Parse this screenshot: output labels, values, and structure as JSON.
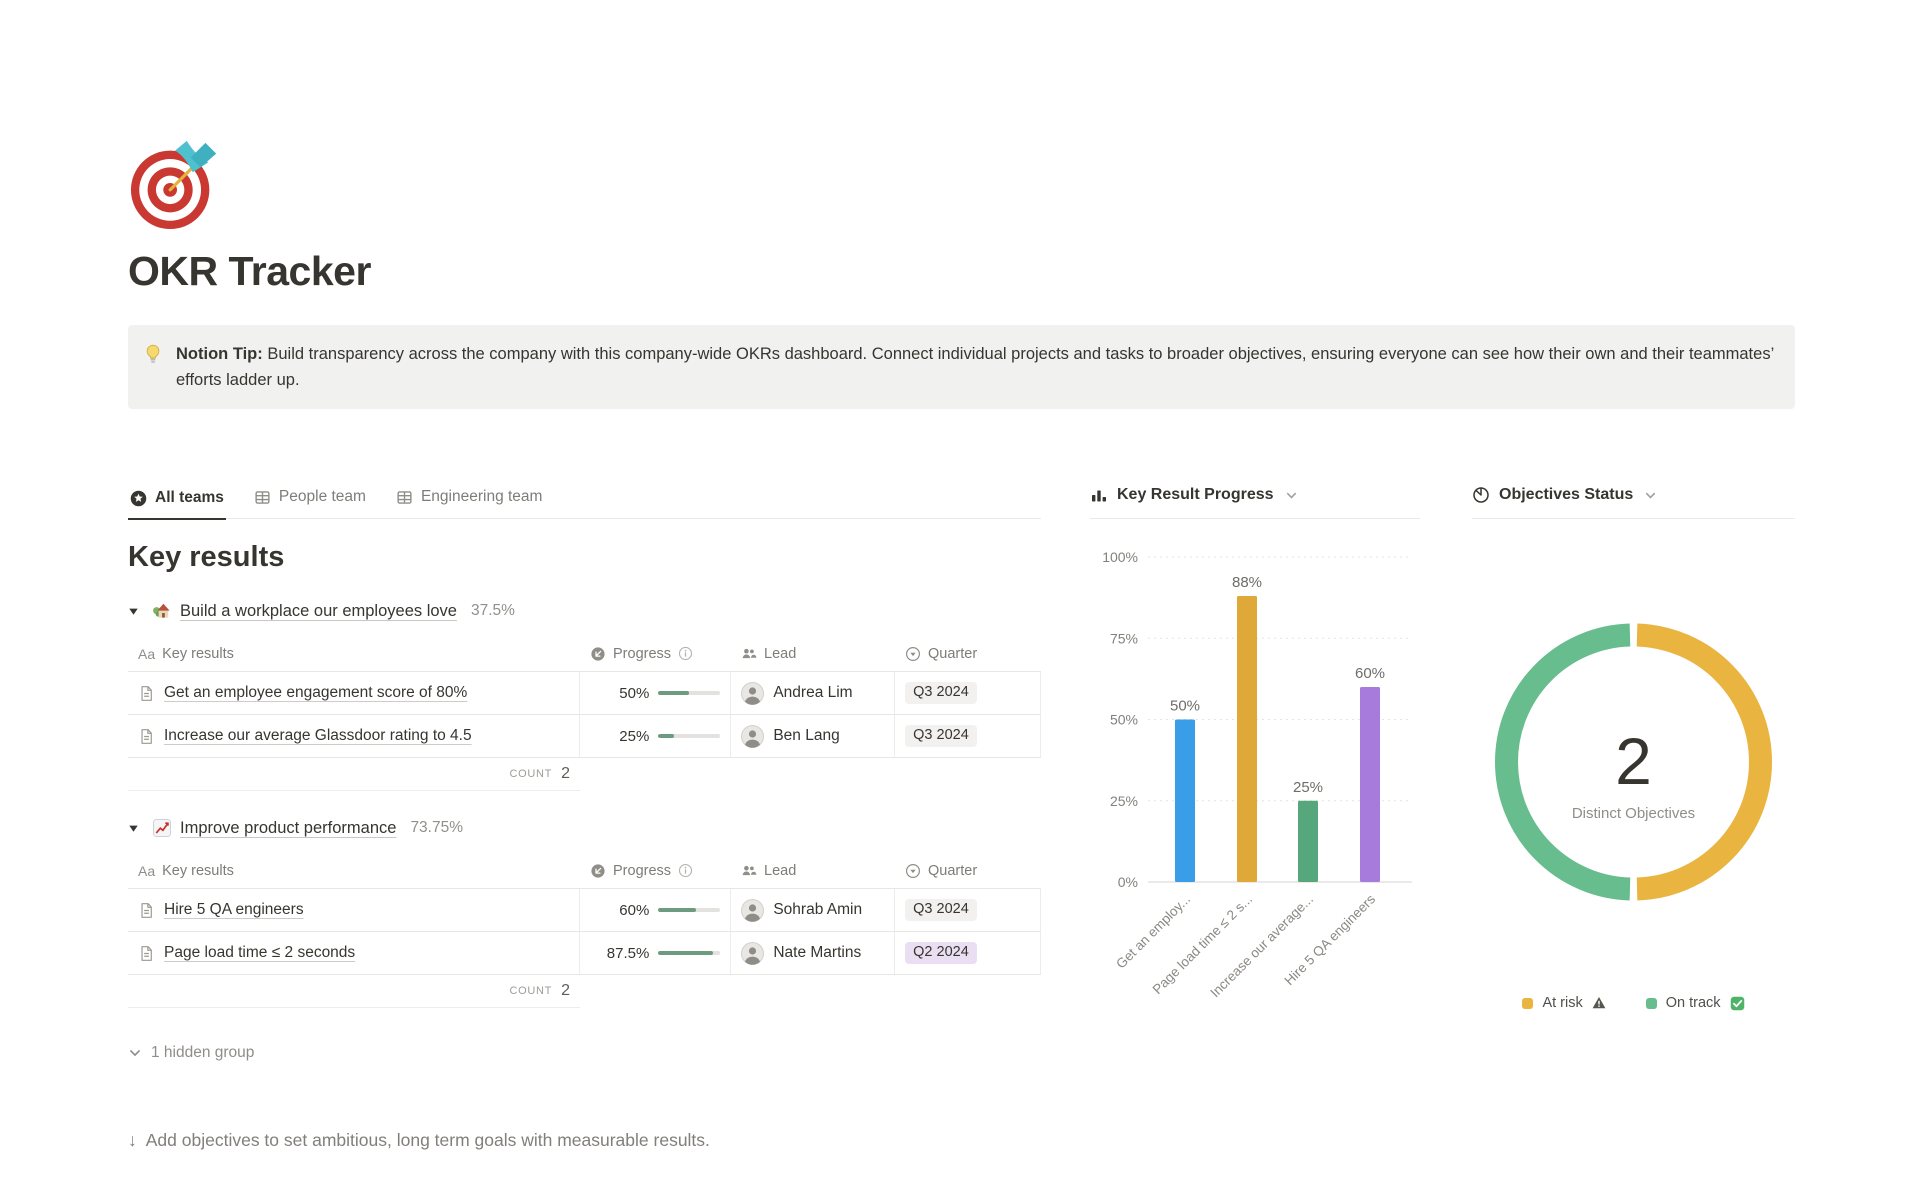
{
  "page": {
    "icon": "target-dart-emoji",
    "title": "OKR Tracker"
  },
  "callout": {
    "icon": "lightbulb-emoji",
    "lead_in": "Notion Tip:",
    "text": "Build transparency across the company with this company-wide OKRs dashboard. Connect individual projects and tasks to broader objectives, ensuring everyone can see how their own and their teammates’ efforts ladder up."
  },
  "tabs": [
    {
      "label": "All teams",
      "icon": "star-circle-icon",
      "active": true
    },
    {
      "label": "People team",
      "icon": "table-icon",
      "active": false
    },
    {
      "label": "Engineering team",
      "icon": "table-icon",
      "active": false
    }
  ],
  "section": {
    "title": "Key results"
  },
  "table_columns": {
    "name": "Key results",
    "name_icon": "Aa",
    "progress": "Progress",
    "lead": "Lead",
    "quarter": "Quarter"
  },
  "groups": [
    {
      "icon": "house-emoji",
      "title": "Build a workplace our employees love",
      "percent": "37.5%",
      "rows": [
        {
          "name": "Get an employee engagement score of 80%",
          "progress": 50,
          "progress_label": "50%",
          "lead": "Andrea Lim",
          "quarter": "Q3 2024",
          "quarter_style": "gray"
        },
        {
          "name": "Increase our average Glassdoor rating to 4.5",
          "progress": 25,
          "progress_label": "25%",
          "lead": "Ben Lang",
          "quarter": "Q3 2024",
          "quarter_style": "gray"
        }
      ],
      "count_label": "COUNT",
      "count_value": "2"
    },
    {
      "icon": "chart-up-emoji",
      "title": "Improve product performance",
      "percent": "73.75%",
      "rows": [
        {
          "name": "Hire 5 QA engineers",
          "progress": 60,
          "progress_label": "60%",
          "lead": "Sohrab Amin",
          "quarter": "Q3 2024",
          "quarter_style": "gray"
        },
        {
          "name": "Page load time ≤ 2 seconds",
          "progress": 87.5,
          "progress_label": "87.5%",
          "lead": "Nate Martins",
          "quarter": "Q2 2024",
          "quarter_style": "purple"
        }
      ],
      "count_label": "COUNT",
      "count_value": "2"
    }
  ],
  "hidden_group_label": "1 hidden group",
  "footer_arrow": "↓",
  "footer_hint": "Add objectives to set ambitious, long term goals with measurable results.",
  "colors": {
    "text_dark": "#37352f",
    "progress_fill": "#6d9b7f",
    "progress_track": "#e3e2df",
    "tag_gray_bg": "#f2f1ef",
    "tag_purple_bg": "#e9def2",
    "border": "#e9e9e7"
  },
  "chart_data": [
    {
      "type": "bar",
      "title": "Key Result Progress",
      "header_icon": "bar-chart-icon",
      "categories": [
        "Get an employ...",
        "Page load time ≤ 2 s...",
        "Increase our average...",
        "Hire 5 QA engineers"
      ],
      "values": [
        50,
        88,
        25,
        60
      ],
      "value_labels": [
        "50%",
        "88%",
        "25%",
        "60%"
      ],
      "bar_colors": [
        "#3a9de8",
        "#dfa93a",
        "#57a77c",
        "#a77bdb"
      ],
      "y_ticks": [
        0,
        25,
        50,
        75,
        100
      ],
      "y_tick_labels": [
        "0%",
        "25%",
        "50%",
        "75%",
        "100%"
      ],
      "ylim": [
        0,
        100
      ],
      "grid": "dotted-horizontal",
      "legend_position": "none"
    },
    {
      "type": "pie",
      "title": "Objectives Status",
      "header_icon": "pie-chart-icon",
      "donut": true,
      "slices": [
        {
          "label": "At risk",
          "value": 1,
          "color": "#e9b440",
          "legend_marker": "warning-icon"
        },
        {
          "label": "On track",
          "value": 1,
          "color": "#67bd8d",
          "legend_marker": "check-icon"
        }
      ],
      "center_value": "2",
      "center_label": "Distinct Objectives",
      "legend_position": "bottom"
    }
  ]
}
